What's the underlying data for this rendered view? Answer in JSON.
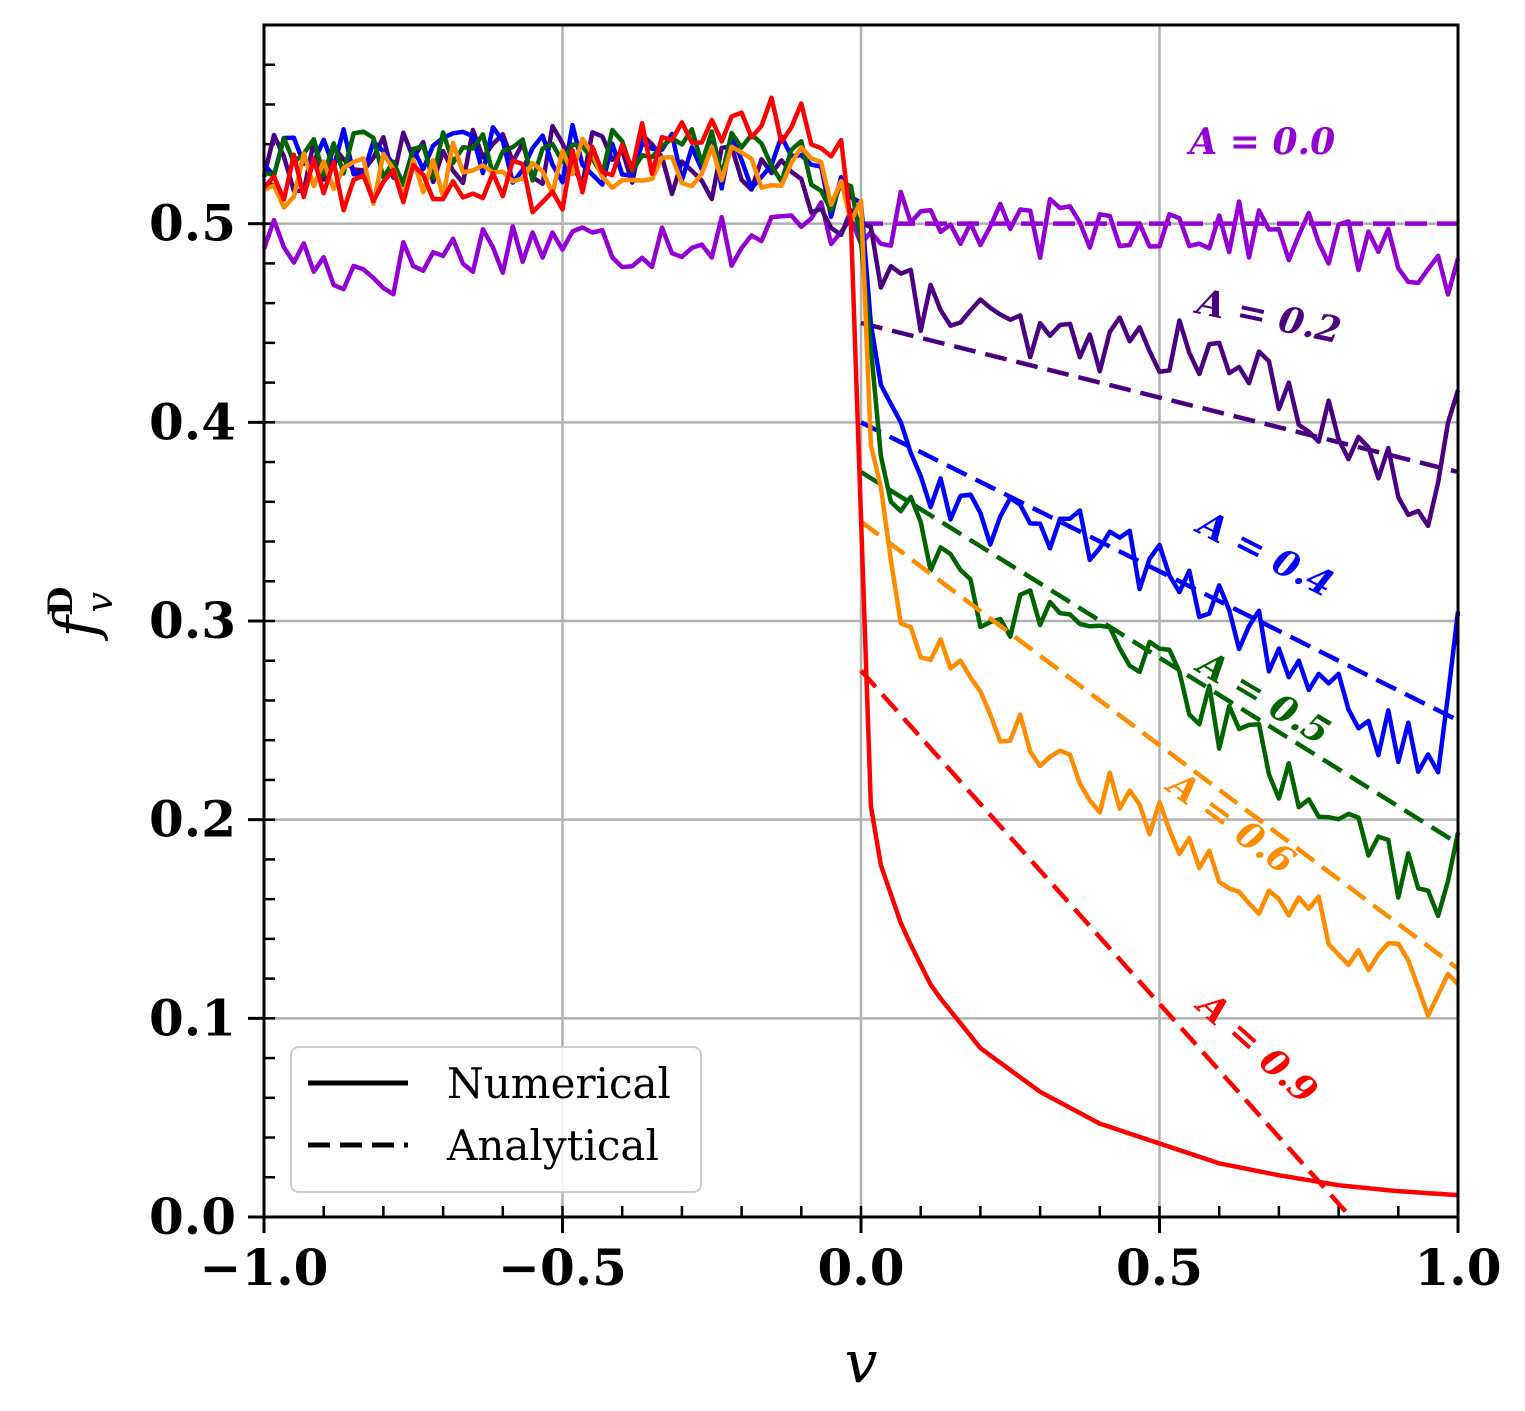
{
  "chart_data": {
    "type": "line",
    "title": "",
    "xlabel": "v",
    "ylabel": "f",
    "ylabel_superscript": "D",
    "ylabel_subscript": "v",
    "xlim": [
      -1.0,
      1.0
    ],
    "ylim": [
      0.0,
      0.6
    ],
    "x_ticks": [
      -1.0,
      -0.5,
      0.0,
      0.5,
      1.0
    ],
    "x_tick_labels": [
      "−1.0",
      "−0.5",
      "0.0",
      "0.5",
      "1.0"
    ],
    "y_ticks": [
      0.0,
      0.1,
      0.2,
      0.3,
      0.4,
      0.5
    ],
    "y_tick_labels": [
      "0.0",
      "0.1",
      "0.2",
      "0.3",
      "0.4",
      "0.5"
    ],
    "grid": true,
    "legend": {
      "position": "bottom-left",
      "entries": [
        {
          "label": "Numerical",
          "style": "solid"
        },
        {
          "label": "Analytical",
          "style": "dashed"
        }
      ]
    },
    "series": [
      {
        "name": "A = 0.0",
        "A": 0.0,
        "color": "#9400d3",
        "numerical": {
          "x": [
            -1.0,
            -0.9,
            -0.8,
            -0.7,
            -0.6,
            -0.5,
            -0.4,
            -0.3,
            -0.2,
            -0.1,
            -0.02,
            0.0,
            0.1,
            0.2,
            0.3,
            0.4,
            0.5,
            0.6,
            0.7,
            0.8,
            0.9,
            1.0
          ],
          "y": [
            0.495,
            0.478,
            0.476,
            0.485,
            0.49,
            0.492,
            0.488,
            0.495,
            0.492,
            0.498,
            0.505,
            0.5,
            0.502,
            0.495,
            0.497,
            0.5,
            0.501,
            0.497,
            0.495,
            0.49,
            0.482,
            0.475
          ]
        },
        "analytical": {
          "x": [
            0.0,
            1.0
          ],
          "y": [
            0.5,
            0.5
          ]
        }
      },
      {
        "name": "A = 0.2",
        "A": 0.2,
        "color": "#4b0082",
        "numerical": {
          "x": [
            -1.0,
            -0.5,
            -0.1,
            0.0,
            0.05,
            0.1,
            0.2,
            0.3,
            0.4,
            0.5,
            0.6,
            0.7,
            0.8,
            0.9,
            0.95,
            1.0
          ],
          "y": [
            0.53,
            0.535,
            0.52,
            0.5,
            0.47,
            0.46,
            0.45,
            0.44,
            0.44,
            0.44,
            0.43,
            0.42,
            0.395,
            0.37,
            0.36,
            0.42
          ]
        },
        "analytical": {
          "x": [
            0.0,
            1.0
          ],
          "y": [
            0.45,
            0.375
          ]
        }
      },
      {
        "name": "A = 0.4",
        "A": 0.4,
        "color": "#0000ff",
        "numerical": {
          "x": [
            -1.0,
            -0.5,
            -0.1,
            0.0,
            0.02,
            0.05,
            0.1,
            0.2,
            0.3,
            0.4,
            0.5,
            0.6,
            0.7,
            0.8,
            0.9,
            0.97,
            1.0
          ],
          "y": [
            0.535,
            0.535,
            0.53,
            0.5,
            0.45,
            0.41,
            0.375,
            0.355,
            0.345,
            0.34,
            0.325,
            0.305,
            0.285,
            0.26,
            0.24,
            0.22,
            0.29
          ]
        },
        "analytical": {
          "x": [
            0.0,
            1.0
          ],
          "y": [
            0.4,
            0.25
          ]
        }
      },
      {
        "name": "A = 0.5",
        "A": 0.5,
        "color": "#006400",
        "numerical": {
          "x": [
            -1.0,
            -0.5,
            -0.1,
            0.0,
            0.02,
            0.05,
            0.1,
            0.2,
            0.3,
            0.4,
            0.5,
            0.6,
            0.7,
            0.8,
            0.9,
            0.97,
            1.0
          ],
          "y": [
            0.53,
            0.535,
            0.535,
            0.5,
            0.42,
            0.37,
            0.34,
            0.31,
            0.3,
            0.29,
            0.275,
            0.25,
            0.225,
            0.2,
            0.175,
            0.165,
            0.19
          ]
        },
        "analytical": {
          "x": [
            0.0,
            1.0
          ],
          "y": [
            0.375,
            0.188
          ]
        }
      },
      {
        "name": "A = 0.6",
        "A": 0.6,
        "color": "#ff8c00",
        "numerical": {
          "x": [
            -1.0,
            -0.5,
            -0.1,
            0.0,
            0.02,
            0.05,
            0.1,
            0.2,
            0.3,
            0.4,
            0.5,
            0.6,
            0.7,
            0.8,
            0.9,
            0.97,
            1.0
          ],
          "y": [
            0.52,
            0.53,
            0.53,
            0.51,
            0.38,
            0.32,
            0.29,
            0.26,
            0.235,
            0.215,
            0.2,
            0.18,
            0.16,
            0.145,
            0.125,
            0.112,
            0.125
          ]
        },
        "analytical": {
          "x": [
            0.0,
            1.0
          ],
          "y": [
            0.35,
            0.125
          ]
        }
      },
      {
        "name": "A = 0.9",
        "A": 0.9,
        "color": "#ff0000",
        "numerical": {
          "x": [
            -1.0,
            -0.5,
            -0.3,
            -0.1,
            -0.02,
            0.0,
            0.005,
            0.03,
            0.07,
            0.12,
            0.2,
            0.3,
            0.4,
            0.5,
            0.6,
            0.7,
            0.8,
            0.9,
            1.0
          ],
          "y": [
            0.52,
            0.52,
            0.545,
            0.55,
            0.54,
            0.34,
            0.23,
            0.18,
            0.145,
            0.115,
            0.085,
            0.063,
            0.047,
            0.037,
            0.027,
            0.021,
            0.016,
            0.013,
            0.011
          ]
        },
        "analytical": {
          "x": [
            0.0,
            0.82
          ],
          "y": [
            0.275,
            0.0
          ]
        }
      }
    ],
    "annotations": [
      {
        "text": "A = 0.0",
        "series": "A = 0.0"
      },
      {
        "text": "A = 0.2",
        "series": "A = 0.2"
      },
      {
        "text": "A = 0.4",
        "series": "A = 0.4"
      },
      {
        "text": "A = 0.5",
        "series": "A = 0.5"
      },
      {
        "text": "A = 0.6",
        "series": "A = 0.6"
      },
      {
        "text": "A = 0.9",
        "series": "A = 0.9"
      }
    ]
  }
}
